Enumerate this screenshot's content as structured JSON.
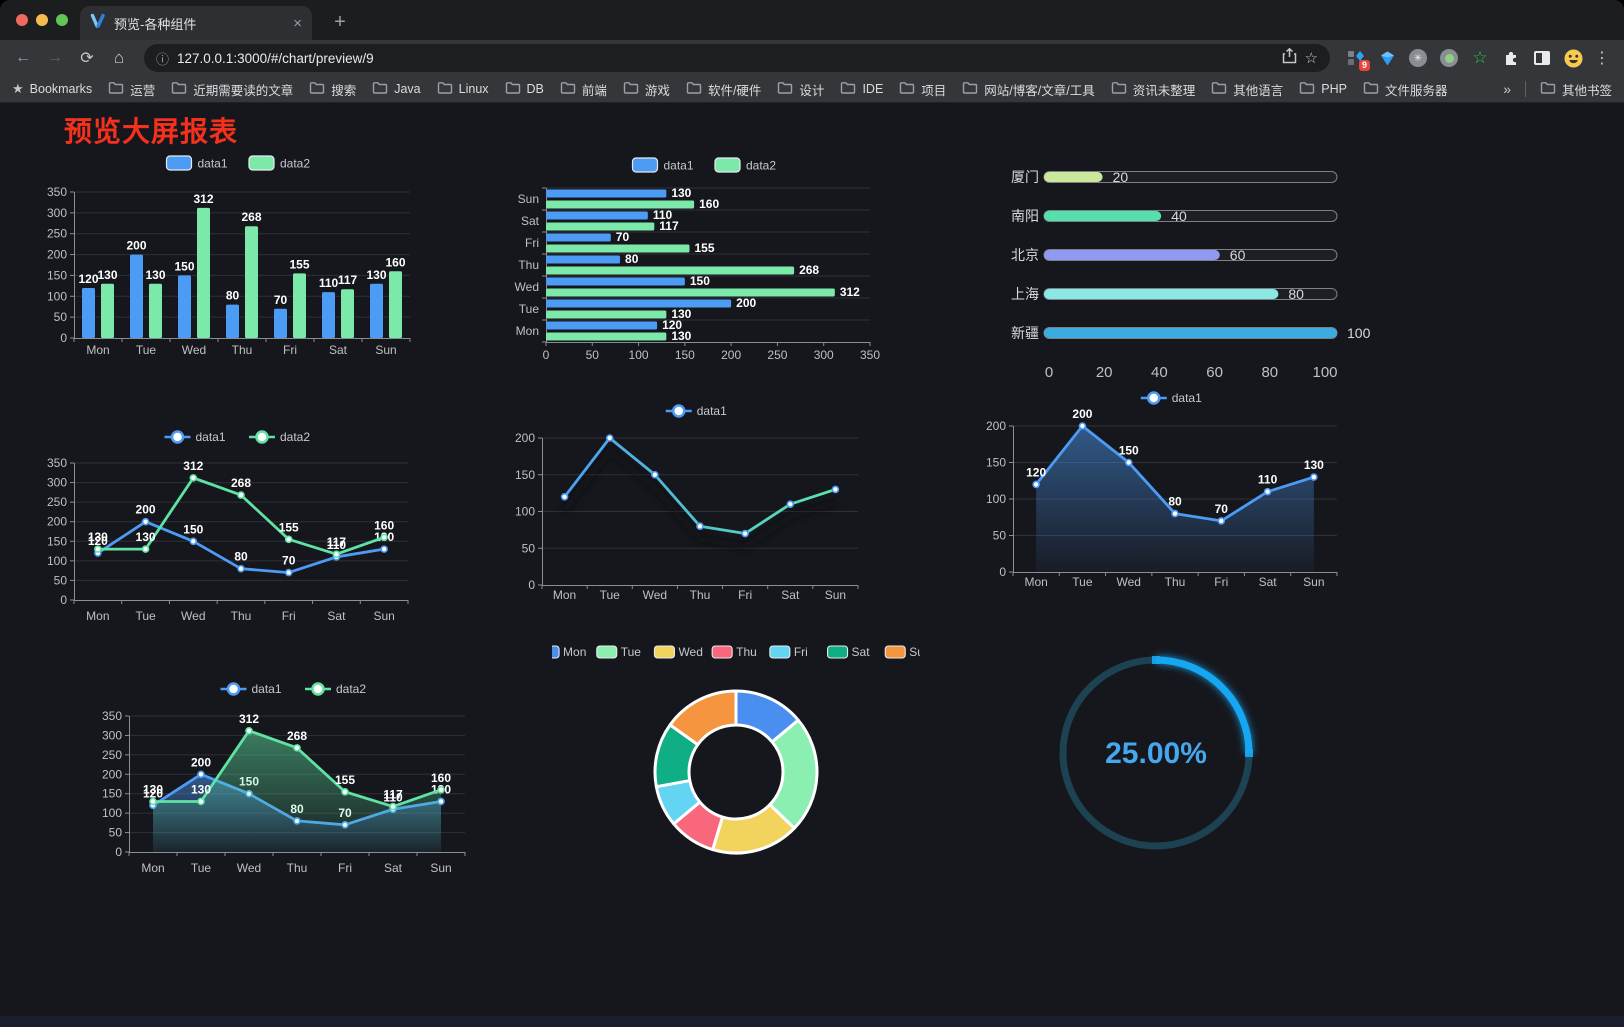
{
  "browser": {
    "tab_title": "预览-各种组件",
    "url": "127.0.0.1:3000/#/chart/preview/9",
    "new_tab_label": "+",
    "close_tab_label": "×",
    "bookmarks_label": "Bookmarks",
    "bookmarks": [
      "运营",
      "近期需要读的文章",
      "搜索",
      "Java",
      "Linux",
      "DB",
      "前端",
      "游戏",
      "软件/硬件",
      "设计",
      "IDE",
      "项目",
      "网站/博客/文章/工具",
      "资讯未整理",
      "其他语言",
      "PHP",
      "文件服务器"
    ],
    "overflow_chevron": "»",
    "other_bookmarks_label": "其他书签",
    "extension_badge": "9"
  },
  "page": {
    "title": "预览大屏报表",
    "title_color": "#f5311d"
  },
  "colors": {
    "data1_blue": "#4C9BF5",
    "data2_green": "#7CE8A9",
    "line_green": "#5FE3A4",
    "axis_text": "#BDC0C6",
    "value_label": "#FFFFFF",
    "gauge_blue": "#18A7F3"
  },
  "chart_data": [
    {
      "id": "grouped-bar",
      "type": "bar",
      "categories": [
        "Mon",
        "Tue",
        "Wed",
        "Thu",
        "Fri",
        "Sat",
        "Sun"
      ],
      "series": [
        {
          "name": "data1",
          "color": "#4C9BF5",
          "values": [
            120,
            200,
            150,
            80,
            70,
            110,
            130
          ]
        },
        {
          "name": "data2",
          "color": "#7CE8A9",
          "values": [
            130,
            130,
            312,
            268,
            155,
            117,
            160
          ]
        }
      ],
      "ylim": [
        0,
        350
      ],
      "ytick_step": 50,
      "legend_position": "top",
      "grid": true
    },
    {
      "id": "horizontal-bar",
      "type": "bar",
      "orientation": "horizontal",
      "categories": [
        "Mon",
        "Tue",
        "Wed",
        "Thu",
        "Fri",
        "Sat",
        "Sun"
      ],
      "series": [
        {
          "name": "data1",
          "color": "#4C9BF5",
          "values": [
            120,
            200,
            150,
            80,
            70,
            110,
            130
          ]
        },
        {
          "name": "data2",
          "color": "#7CE8A9",
          "values": [
            130,
            130,
            312,
            268,
            155,
            117,
            160
          ]
        }
      ],
      "xlim": [
        0,
        350
      ],
      "xtick_step": 50,
      "legend_position": "top",
      "note": "Sun shown at top, Mon at bottom"
    },
    {
      "id": "progress-bars",
      "type": "bar",
      "subtype": "progress",
      "categories": [
        "厦门",
        "南阳",
        "北京",
        "上海",
        "新疆"
      ],
      "values": [
        20,
        40,
        60,
        80,
        100
      ],
      "bar_colors": [
        "#CBE79B",
        "#55E0AB",
        "#8F9AF0",
        "#8CE8E4",
        "#3CABE0"
      ],
      "xlim": [
        0,
        100
      ],
      "xticks": [
        0,
        20,
        40,
        60,
        80,
        100
      ]
    },
    {
      "id": "dual-line",
      "type": "line",
      "categories": [
        "Mon",
        "Tue",
        "Wed",
        "Thu",
        "Fri",
        "Sat",
        "Sun"
      ],
      "series": [
        {
          "name": "data1",
          "color": "#4C9BF5",
          "values": [
            120,
            200,
            150,
            80,
            70,
            110,
            130
          ]
        },
        {
          "name": "data2",
          "color": "#5FE3A4",
          "values": [
            130,
            130,
            312,
            268,
            155,
            117,
            160
          ]
        }
      ],
      "ylim": [
        0,
        350
      ],
      "ytick_step": 50,
      "show_labels": true,
      "legend_position": "top"
    },
    {
      "id": "gradient-line",
      "type": "line",
      "categories": [
        "Mon",
        "Tue",
        "Wed",
        "Thu",
        "Fri",
        "Sat",
        "Sun"
      ],
      "series": [
        {
          "name": "data1",
          "gradient_stroke": [
            "#4AA0F5",
            "#5CE6A8"
          ],
          "marker_color": "#4C9BF5",
          "values": [
            120,
            200,
            150,
            80,
            70,
            110,
            130
          ]
        }
      ],
      "ylim": [
        0,
        200
      ],
      "ytick_step": 50,
      "show_labels": false,
      "shadow": true,
      "legend_position": "top"
    },
    {
      "id": "blue-area",
      "type": "area",
      "categories": [
        "Mon",
        "Tue",
        "Wed",
        "Thu",
        "Fri",
        "Sat",
        "Sun"
      ],
      "series": [
        {
          "name": "data1",
          "color": "#4C9BF5",
          "values": [
            120,
            200,
            150,
            80,
            70,
            110,
            130
          ],
          "area": true
        }
      ],
      "ylim": [
        0,
        200
      ],
      "ytick_step": 50,
      "show_labels": true,
      "legend_position": "top"
    },
    {
      "id": "dual-line-area",
      "type": "area",
      "categories": [
        "Mon",
        "Tue",
        "Wed",
        "Thu",
        "Fri",
        "Sat",
        "Sun"
      ],
      "series": [
        {
          "name": "data1",
          "color": "#4C9BF5",
          "values": [
            120,
            200,
            150,
            80,
            70,
            110,
            130
          ],
          "area": true
        },
        {
          "name": "data2",
          "color": "#5FE3A4",
          "values": [
            130,
            130,
            312,
            268,
            155,
            117,
            160
          ],
          "area": true
        }
      ],
      "ylim": [
        0,
        350
      ],
      "ytick_step": 50,
      "show_labels": true,
      "legend_position": "top"
    },
    {
      "id": "donut-pie",
      "type": "pie",
      "labels": [
        "Mon",
        "Tue",
        "Wed",
        "Thu",
        "Fri",
        "Sat",
        "Sun"
      ],
      "values": [
        120,
        200,
        150,
        80,
        70,
        110,
        130
      ],
      "colors": [
        "#4A8FF0",
        "#8AEFB0",
        "#F2D35E",
        "#F8677C",
        "#63D5F2",
        "#10AE85",
        "#F6953F"
      ],
      "inner_radius_ratio": 0.58,
      "legend_position": "top"
    },
    {
      "id": "gauge",
      "type": "gauge",
      "value_label": "25.00%",
      "percent": 25,
      "color": "#18A7F3",
      "track_color": "#1D4252",
      "text_color": "#45A8EF"
    }
  ]
}
